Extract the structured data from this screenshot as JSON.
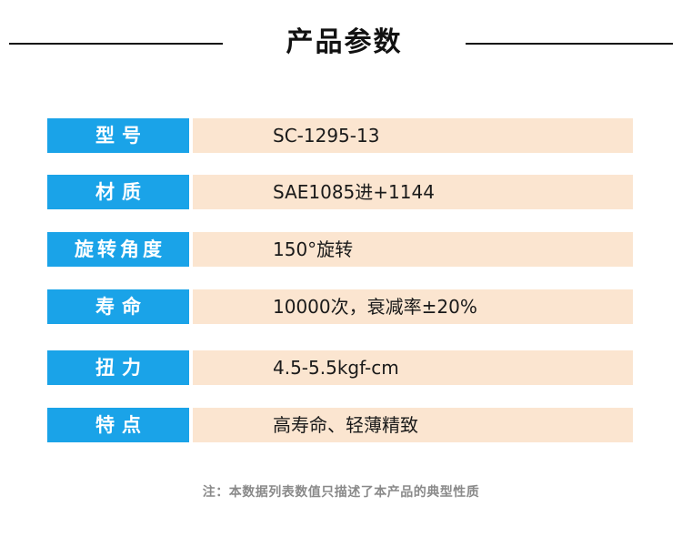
{
  "header": {
    "title": "产品参数"
  },
  "specs": [
    {
      "label": "型号",
      "value": "SC-1295-13"
    },
    {
      "label": "材质",
      "value": "SAE1085进+1144"
    },
    {
      "label": "旋转角度",
      "value": "150°旋转"
    },
    {
      "label": "寿命",
      "value": "10000次，衰减率±20%"
    },
    {
      "label": "扭力",
      "value": "4.5-5.5kgf-cm"
    },
    {
      "label": "特点",
      "value": "高寿命、轻薄精致"
    }
  ],
  "footnote": "注：本数据列表数值只描述了本产品的典型性质",
  "colors": {
    "label_bg": "#1aa3e8",
    "value_bg": "#fbe5d0"
  }
}
